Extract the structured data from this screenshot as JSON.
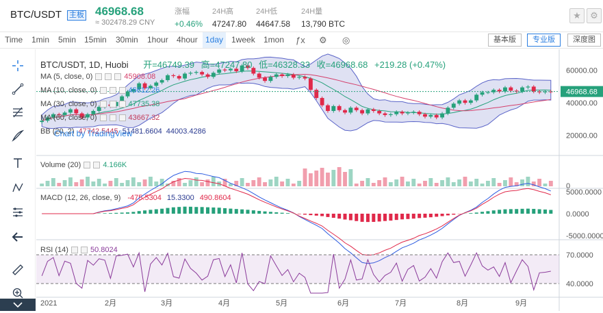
{
  "header": {
    "pair": "BTC/USDT",
    "tag": "主板",
    "price": "46968.68",
    "cny": "≈ 302478.29 CNY",
    "stats": [
      {
        "label": "涨幅",
        "value": "+0.46%"
      },
      {
        "label": "24H高",
        "value": "47247.80"
      },
      {
        "label": "24H低",
        "value": "44647.58"
      },
      {
        "label": "24H量",
        "value": "13,790 BTC"
      }
    ]
  },
  "toolbar": {
    "intervals": [
      "Time",
      "1min",
      "5min",
      "15min",
      "30min",
      "1hour",
      "4hour",
      "1day",
      "1week",
      "1mon"
    ],
    "active_interval": "1day",
    "views": [
      "基本版",
      "专业版",
      "深度图"
    ],
    "active_view": "专业版"
  },
  "legend": {
    "title": "BTC/USDT, 1D, Huobi",
    "open_label": "开=46749.39",
    "high_label": "高=47247.80",
    "low_label": "低=46328.33",
    "close_label": "收=46968.68",
    "change": "+219.28 (+0.47%)",
    "ma5": "MA (5, close, 0)",
    "ma5_val": "45908.08",
    "ma10": "MA (10, close, 0)",
    "ma10_val": "46612.26",
    "ma30": "MA (30, close, 0)",
    "ma30_val": "47735.38",
    "ma60": "MA (60, close, 0)",
    "ma60_val": "43667.32",
    "bb": "BB (20, 2)",
    "bb_v1": "47742.5445",
    "bb_v2": "51481.6604",
    "bb_v3": "44003.4286",
    "watermark": "Chart by TradingView",
    "volume": "Volume (20)",
    "volume_val": "4.166K",
    "macd": "MACD (12, 26, close, 9)",
    "macd_v1": "-475.5304",
    "macd_v2": "15.3300",
    "macd_v3": "490.8604",
    "rsi": "RSI (14)",
    "rsi_val": "50.8024"
  },
  "colors": {
    "up": "#26a17b",
    "down": "#e0294a",
    "accent": "#2a7ee0"
  },
  "chart_data": [
    {
      "type": "candlestick",
      "title": "BTC/USDT, 1D, Huobi",
      "x": [
        "2021",
        "2月",
        "3月",
        "4月",
        "5月",
        "6月",
        "7月",
        "8月",
        "9月"
      ],
      "y_ticks": [
        "60000.00",
        "40000.00",
        "20000.00"
      ],
      "last_price": "46968.68",
      "close_series": [
        29000,
        31000,
        33000,
        32500,
        34000,
        36000,
        33500,
        31000,
        33000,
        35000,
        37500,
        39000,
        38000,
        40500,
        44000,
        47000,
        48500,
        52000,
        49000,
        50500,
        52500,
        54000,
        57000,
        56500,
        55000,
        58000,
        58500,
        59000,
        57500,
        56000,
        58500,
        60500,
        60000,
        61000,
        59500,
        63000,
        61500,
        58000,
        55500,
        53500,
        56000,
        57500,
        56500,
        57500,
        55500,
        56000,
        55000,
        48000,
        43000,
        38500,
        35000,
        38000,
        35500,
        34000,
        37000,
        35500,
        33500,
        36000,
        35000,
        33500,
        32500,
        33000,
        34500,
        33500,
        34000,
        34500,
        33000,
        31500,
        32500,
        31000,
        33500,
        37000,
        39500,
        41500,
        40000,
        41500,
        45000,
        46500,
        46500,
        48000,
        47000,
        49500,
        47500,
        47000,
        49500,
        50000,
        47000,
        46500,
        47000,
        46968.68
      ]
    },
    {
      "type": "bar",
      "title": "Volume (20)",
      "y_ticks": [
        "0"
      ],
      "last_value": "4.166K"
    },
    {
      "type": "line",
      "title": "MACD (12, 26, close, 9)",
      "y_ticks": [
        "5000.0000",
        "0.0000",
        "-5000.0000"
      ],
      "values": [
        "-475.5304",
        "15.3300",
        "490.8604"
      ]
    },
    {
      "type": "line",
      "title": "RSI (14)",
      "y_ticks": [
        "70.0000",
        "40.0000"
      ],
      "last_value": "50.8024"
    }
  ],
  "axes": {
    "main_ticks": [
      "60000.00",
      "40000.00",
      "20000.00"
    ],
    "vol_tick": "0",
    "macd_ticks": [
      "5000.0000",
      "0.0000",
      "-5000.0000"
    ],
    "rsi_ticks": [
      "70.0000",
      "40.0000"
    ],
    "x_ticks": [
      "2021",
      "2月",
      "3月",
      "4月",
      "5月",
      "6月",
      "7月",
      "8月",
      "9月"
    ],
    "last_price": "46968.68"
  }
}
